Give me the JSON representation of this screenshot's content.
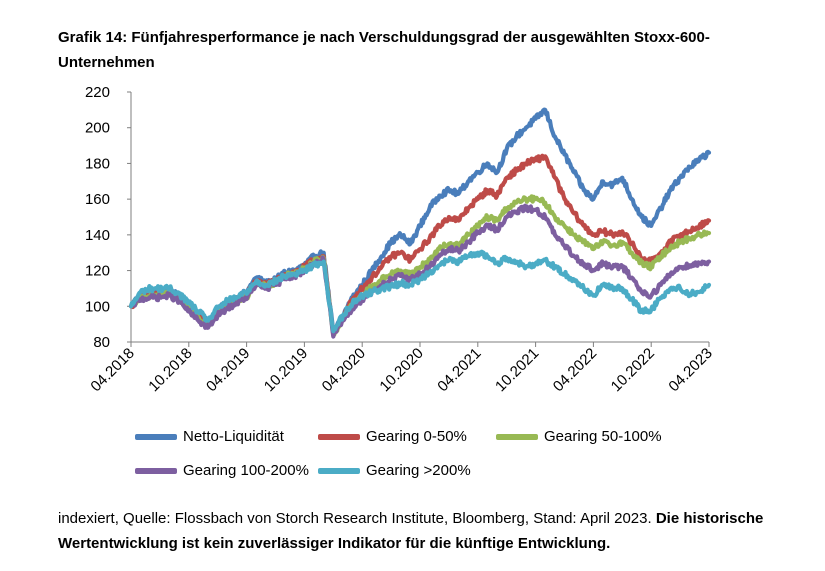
{
  "title": "Grafik 14: Fünfjahresperformance je nach Verschuldungsgrad der ausgewählten Stoxx-600-Unternehmen",
  "footer": {
    "source": "indexiert, Quelle: Flossbach von Storch Research Institute, Bloomberg, Stand: April 2023.",
    "disclaimer": "Die historische Wertentwicklung ist kein zuverlässiger Indikator für die künftige Entwicklung."
  },
  "chart_data": {
    "type": "line",
    "xlabel": "",
    "ylabel": "",
    "ylim": [
      80,
      220
    ],
    "yticks": [
      "80",
      "100",
      "120",
      "140",
      "160",
      "180",
      "200",
      "220"
    ],
    "xticks": [
      "04.2018",
      "10.2018",
      "04.2019",
      "10.2019",
      "04.2020",
      "10.2020",
      "04.2021",
      "10.2021",
      "04.2022",
      "10.2022",
      "04.2023"
    ],
    "grid": false,
    "legend_position": "bottom",
    "series": [
      {
        "name": "Netto-Liquidität",
        "color": "#4a7ebb",
        "x": [
          0,
          1,
          2,
          3,
          4,
          5,
          6,
          7,
          8,
          9,
          10,
          11,
          11.9,
          12,
          12.4,
          13,
          14,
          15,
          16,
          17,
          18,
          19,
          20,
          21,
          22,
          23,
          24,
          25,
          26,
          27,
          28,
          29,
          30,
          31,
          32,
          33,
          34,
          35,
          36,
          37,
          38,
          39,
          40,
          41,
          42,
          43,
          44,
          45,
          46,
          47,
          48,
          49,
          50,
          51,
          52,
          53,
          54,
          55,
          56,
          57,
          58,
          59,
          60
        ],
        "y": [
          100,
          107,
          108,
          108,
          109,
          106,
          101,
          96,
          91,
          98,
          102,
          104,
          108,
          107,
          112,
          116,
          113,
          115,
          119,
          120,
          123,
          128,
          130,
          85,
          95,
          105,
          112,
          120,
          128,
          136,
          140,
          135,
          145,
          155,
          162,
          165,
          163,
          170,
          175,
          180,
          175,
          188,
          195,
          200,
          205,
          210,
          195,
          185,
          175,
          165,
          160,
          170,
          168,
          172,
          160,
          150,
          145,
          155,
          165,
          172,
          178,
          182,
          186
        ]
      },
      {
        "name": "Gearing 0-50%",
        "color": "#be4b48",
        "x": [
          0,
          1,
          2,
          3,
          4,
          5,
          6,
          7,
          8,
          9,
          10,
          11,
          11.9,
          12,
          12.4,
          13,
          14,
          15,
          16,
          17,
          18,
          19,
          20,
          21,
          22,
          23,
          24,
          25,
          26,
          27,
          28,
          29,
          30,
          31,
          32,
          33,
          34,
          35,
          36,
          37,
          38,
          39,
          40,
          41,
          42,
          43,
          44,
          45,
          46,
          47,
          48,
          49,
          50,
          51,
          52,
          53,
          54,
          55,
          56,
          57,
          58,
          59,
          60
        ],
        "y": [
          100,
          106,
          107,
          107,
          108,
          106,
          100,
          95,
          90,
          97,
          101,
          104,
          107,
          106,
          110,
          114,
          112,
          114,
          118,
          119,
          122,
          126,
          128,
          84,
          94,
          104,
          110,
          116,
          122,
          128,
          130,
          126,
          132,
          138,
          145,
          150,
          148,
          155,
          160,
          165,
          162,
          172,
          176,
          180,
          182,
          184,
          172,
          160,
          152,
          145,
          140,
          142,
          140,
          142,
          135,
          127,
          125,
          130,
          136,
          140,
          142,
          145,
          148
        ]
      },
      {
        "name": "Gearing 50-100%",
        "color": "#98b954",
        "x": [
          0,
          1,
          2,
          3,
          4,
          5,
          6,
          7,
          8,
          9,
          10,
          11,
          11.9,
          12,
          12.4,
          13,
          14,
          15,
          16,
          17,
          18,
          19,
          20,
          21,
          22,
          23,
          24,
          25,
          26,
          27,
          28,
          29,
          30,
          31,
          32,
          33,
          34,
          35,
          36,
          37,
          38,
          39,
          40,
          41,
          42,
          43,
          44,
          45,
          46,
          47,
          48,
          49,
          50,
          51,
          52,
          53,
          54,
          55,
          56,
          57,
          58,
          59,
          60
        ],
        "y": [
          100,
          105,
          106,
          106,
          107,
          104,
          99,
          94,
          89,
          96,
          100,
          103,
          106,
          105,
          109,
          113,
          111,
          113,
          117,
          118,
          121,
          125,
          127,
          84,
          93,
          101,
          106,
          111,
          115,
          118,
          120,
          118,
          122,
          126,
          132,
          135,
          134,
          140,
          145,
          150,
          148,
          155,
          158,
          160,
          160,
          158,
          150,
          145,
          140,
          136,
          132,
          136,
          134,
          136,
          130,
          124,
          122,
          128,
          133,
          136,
          138,
          140,
          141
        ]
      },
      {
        "name": "Gearing 100-200%",
        "color": "#7d5fa0",
        "x": [
          0,
          1,
          2,
          3,
          4,
          5,
          6,
          7,
          8,
          9,
          10,
          11,
          11.9,
          12,
          12.4,
          13,
          14,
          15,
          16,
          17,
          18,
          19,
          20,
          21,
          22,
          23,
          24,
          25,
          26,
          27,
          28,
          29,
          30,
          31,
          32,
          33,
          34,
          35,
          36,
          37,
          38,
          39,
          40,
          41,
          42,
          43,
          44,
          45,
          46,
          47,
          48,
          49,
          50,
          51,
          52,
          53,
          54,
          55,
          56,
          57,
          58,
          59,
          60
        ],
        "y": [
          100,
          104,
          105,
          105,
          106,
          103,
          97,
          92,
          88,
          95,
          99,
          102,
          105,
          104,
          108,
          112,
          110,
          112,
          116,
          117,
          120,
          124,
          126,
          83,
          92,
          99,
          104,
          108,
          112,
          115,
          117,
          115,
          118,
          122,
          128,
          132,
          131,
          136,
          141,
          145,
          143,
          150,
          153,
          155,
          154,
          150,
          140,
          134,
          128,
          124,
          120,
          124,
          122,
          122,
          116,
          108,
          106,
          112,
          118,
          122,
          123,
          124,
          125
        ]
      },
      {
        "name": "Gearing >200%",
        "color": "#4bacc6",
        "x": [
          0,
          1,
          2,
          3,
          4,
          5,
          6,
          7,
          8,
          9,
          10,
          11,
          11.9,
          12,
          12.4,
          13,
          14,
          15,
          16,
          17,
          18,
          19,
          20,
          21,
          22,
          23,
          24,
          25,
          26,
          27,
          28,
          29,
          30,
          31,
          32,
          33,
          34,
          35,
          36,
          37,
          38,
          39,
          40,
          41,
          42,
          43,
          44,
          45,
          46,
          47,
          48,
          49,
          50,
          51,
          52,
          53,
          54,
          55,
          56,
          57,
          58,
          59,
          60
        ],
        "y": [
          100,
          108,
          110,
          110,
          110,
          107,
          102,
          97,
          92,
          99,
          103,
          105,
          108,
          107,
          111,
          114,
          112,
          114,
          117,
          118,
          120,
          123,
          125,
          86,
          95,
          102,
          106,
          108,
          110,
          111,
          113,
          112,
          115,
          119,
          123,
          126,
          125,
          128,
          130,
          128,
          124,
          127,
          125,
          122,
          124,
          126,
          122,
          118,
          115,
          110,
          106,
          112,
          110,
          110,
          104,
          97,
          98,
          105,
          110,
          110,
          107,
          108,
          112
        ]
      }
    ]
  }
}
